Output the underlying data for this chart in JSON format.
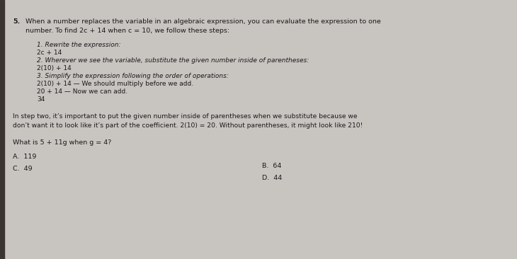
{
  "bg_color": "#c8c4c0",
  "paper_color": "#e8e5e0",
  "text_color": "#1a1a1a",
  "fig_width": 7.3,
  "fig_height": 3.66,
  "dpi": 100,
  "title_number": "5.",
  "title_text": "When a number replaces the variable in an algebraic expression, you can evaluate the expression to one",
  "title_text2": "number. To find 2c + 14 when c = 10, we follow these steps:",
  "step1_label": "1. Rewrite the expression:",
  "step1_val": "2c + 14",
  "step2_label": "2. Wherever we see the variable, substitute the given number inside of parentheses:",
  "step2_val": "2(10) + 14",
  "step3_label": "3. Simplify the expression following the order of operations:",
  "step3_line1": "2(10) + 14 — We should multiply before we add.",
  "step3_line2": "20 + 14 — Now we can add.",
  "step3_line3": "34",
  "note_line1": "In step two, it’s important to put the given number inside of parentheses when we substitute because we",
  "note_line2": "don’t want it to look like it’s part of the coefficient. 2(10) = 20. Without parentheses, it might look like 210!",
  "question": "What is 5 + 11g when g = 4?",
  "choice_A": "A.  119",
  "choice_B": "B.  64",
  "choice_C": "C.  49",
  "choice_D": "D.  44",
  "fs_title": 6.8,
  "fs_steps": 6.5,
  "fs_note": 6.6,
  "fs_q": 6.8,
  "fs_choice": 6.8
}
